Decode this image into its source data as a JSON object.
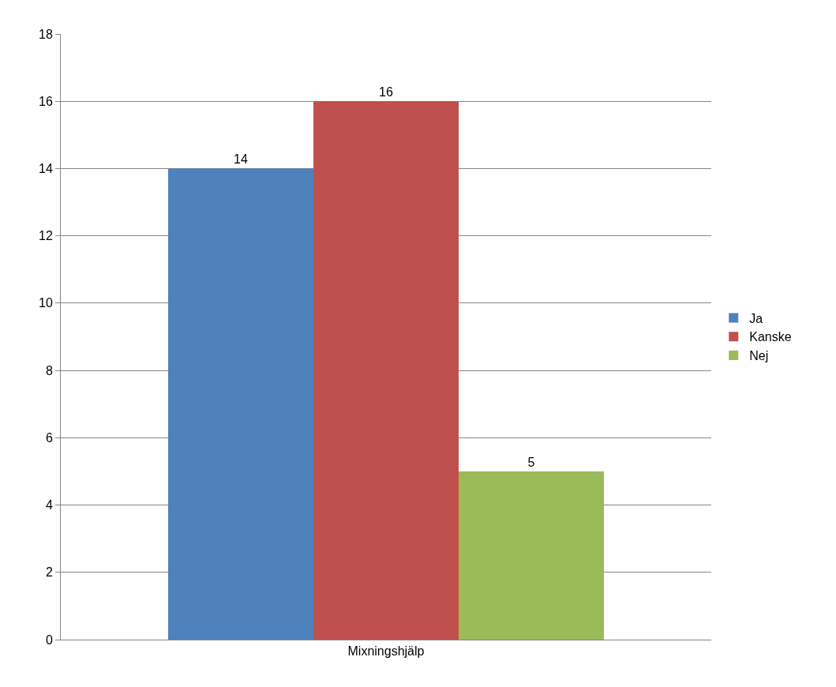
{
  "chart_data": {
    "type": "bar",
    "categories": [
      "Mixningshjälp"
    ],
    "series": [
      {
        "name": "Ja",
        "color": "#4f81bd",
        "values": [
          14
        ]
      },
      {
        "name": "Kanske",
        "color": "#c0504d",
        "values": [
          16
        ]
      },
      {
        "name": "Nej",
        "color": "#9bbb59",
        "values": [
          5
        ]
      }
    ],
    "ylim": [
      0,
      18
    ],
    "yticks": [
      0,
      2,
      4,
      6,
      8,
      10,
      12,
      14,
      16,
      18
    ],
    "grid": "y",
    "legend": "right",
    "data_labels": true
  }
}
